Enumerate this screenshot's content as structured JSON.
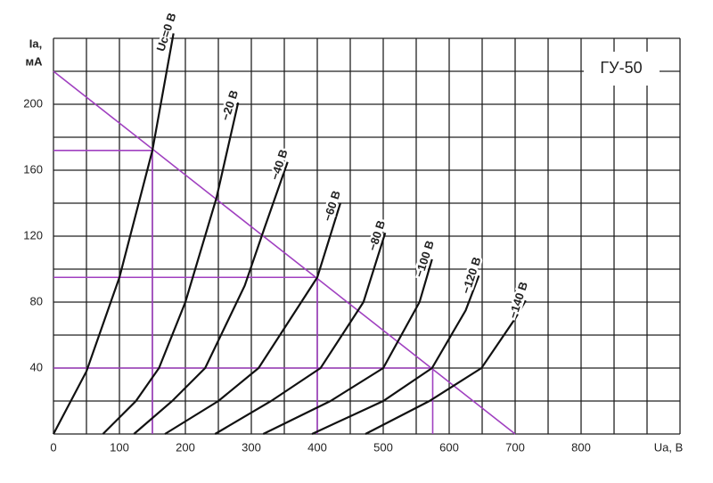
{
  "chart_data": {
    "type": "line",
    "title": "ГУ-50",
    "xlabel": "Uа, В",
    "ylabel": [
      "Iа,",
      "мА"
    ],
    "xlim": [
      0,
      950
    ],
    "ylim": [
      0,
      240
    ],
    "xticks": [
      0,
      100,
      200,
      300,
      400,
      500,
      600,
      700,
      800
    ],
    "yticks": [
      40,
      80,
      120,
      160,
      200
    ],
    "xgrid": [
      0,
      50,
      100,
      150,
      200,
      250,
      300,
      350,
      400,
      450,
      500,
      550,
      600,
      650,
      700,
      750,
      800,
      850,
      900,
      950
    ],
    "ygrid": [
      0,
      20,
      40,
      60,
      80,
      100,
      120,
      140,
      160,
      180,
      200,
      220,
      240
    ],
    "color": "#111111",
    "series": [
      {
        "name": "Uc=0 В",
        "x": [
          0,
          50,
          100,
          150,
          182
        ],
        "values": [
          0,
          38,
          95,
          172,
          243
        ]
      },
      {
        "name": "−20 В",
        "x": [
          75,
          125,
          160,
          200,
          247,
          280
        ],
        "values": [
          0,
          20,
          40,
          80,
          143,
          201
        ]
      },
      {
        "name": "−40 В",
        "x": [
          122,
          180,
          230,
          290,
          320,
          355
        ],
        "values": [
          0,
          20,
          40,
          90,
          125,
          165
        ]
      },
      {
        "name": "−60 В",
        "x": [
          169,
          250,
          311,
          400,
          435
        ],
        "values": [
          0,
          20,
          40,
          95,
          140
        ]
      },
      {
        "name": "−80 В",
        "x": [
          245,
          330,
          405,
          470,
          503
        ],
        "values": [
          0,
          20,
          40,
          80,
          122
        ]
      },
      {
        "name": "−100 В",
        "x": [
          318,
          420,
          500,
          555,
          574
        ],
        "values": [
          0,
          20,
          40,
          80,
          106
        ]
      },
      {
        "name": "−120 В",
        "x": [
          392,
          500,
          574,
          625,
          645
        ],
        "values": [
          0,
          20,
          40,
          75,
          96
        ]
      },
      {
        "name": "−140 В",
        "x": [
          473,
          570,
          649,
          700,
          716
        ],
        "values": [
          0,
          20,
          40,
          70,
          81
        ]
      }
    ],
    "guide_color": "#a040c0",
    "guides": [
      {
        "x": [
          0,
          700
        ],
        "values": [
          220,
          0
        ]
      },
      {
        "x": [
          0,
          150,
          150
        ],
        "values": [
          172,
          172,
          0
        ]
      },
      {
        "x": [
          0,
          400,
          400
        ],
        "values": [
          95,
          95,
          0
        ]
      },
      {
        "x": [
          0,
          575,
          575
        ],
        "values": [
          40,
          40,
          0
        ]
      }
    ]
  }
}
